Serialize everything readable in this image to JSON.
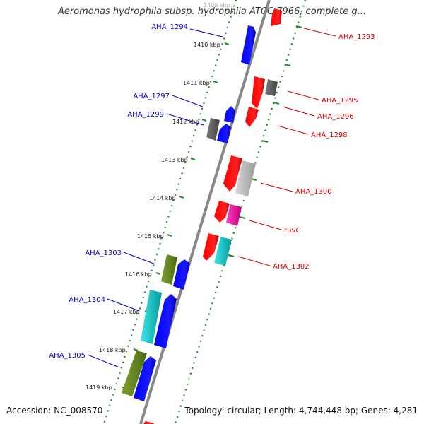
{
  "title": "Aeromonas hydrophila subsp. hydrophila ATCC 7966, complete g...",
  "accession": "Accession: NC_008570",
  "summary": "Topology: circular; Length: 4,744,448 bp; Genes: 4,281",
  "colors": {
    "backbone": "#888888",
    "forward_label": "#0000cc",
    "reverse_label": "#dd0000",
    "tick": "#2a8a2a",
    "gene_blue": "#0000ff",
    "gene_red": "#ff0000",
    "gene_grey": "#666666",
    "gene_light_grey": "#c0c0c0",
    "gene_olive": "#6b8e23",
    "gene_cyan": "#00cccc",
    "gene_magenta": "#ff1493"
  },
  "ticks": [
    {
      "label": "1409 kbp"
    },
    {
      "label": "1410 kbp"
    },
    {
      "label": "1411 kbp"
    },
    {
      "label": "1412 kbp"
    },
    {
      "label": "1413 kbp"
    },
    {
      "label": "1414 kbp"
    },
    {
      "label": "1415 kbp"
    },
    {
      "label": "1416 kbp"
    },
    {
      "label": "1417 kbp"
    },
    {
      "label": "1418 kbp"
    },
    {
      "label": "1419 kbp"
    }
  ],
  "gene_labels": [
    {
      "text": "AHA_1294",
      "strand": "forward"
    },
    {
      "text": "AHA_1297",
      "strand": "forward"
    },
    {
      "text": "AHA_1299",
      "strand": "forward"
    },
    {
      "text": "AHA_1303",
      "strand": "forward"
    },
    {
      "text": "AHA_1304",
      "strand": "forward"
    },
    {
      "text": "AHA_1305",
      "strand": "forward"
    },
    {
      "text": "AHA_1293",
      "strand": "reverse"
    },
    {
      "text": "AHA_1295",
      "strand": "reverse"
    },
    {
      "text": "AHA_1296",
      "strand": "reverse"
    },
    {
      "text": "AHA_1298",
      "strand": "reverse"
    },
    {
      "text": "AHA_1300",
      "strand": "reverse"
    },
    {
      "text": "ruvC",
      "strand": "reverse"
    },
    {
      "text": "AHA_1302",
      "strand": "reverse"
    }
  ]
}
